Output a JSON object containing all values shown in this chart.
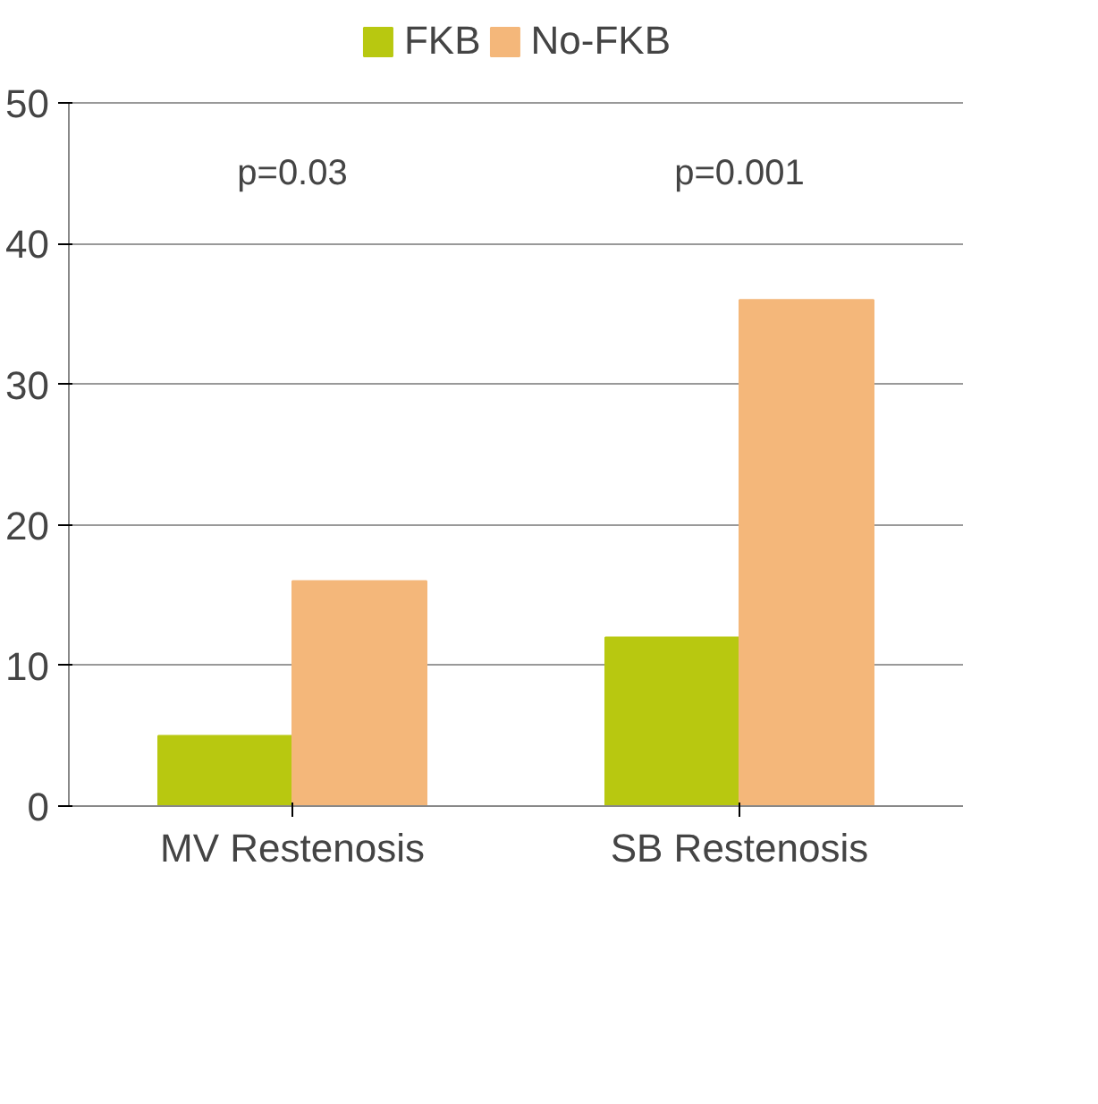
{
  "chart_data": {
    "type": "bar",
    "categories": [
      "MV Restenosis",
      "SB Restenosis"
    ],
    "series": [
      {
        "name": "FKB",
        "color": "#b8c810",
        "values": [
          5,
          12
        ]
      },
      {
        "name": "No-FKB",
        "color": "#f4b77a",
        "values": [
          16,
          36
        ]
      }
    ],
    "ylim": [
      0,
      50
    ],
    "yticks": [
      0,
      10,
      20,
      30,
      40,
      50
    ],
    "grid": "y",
    "legend": "top",
    "annotations": [
      "p=0.03",
      "p=0.001"
    ]
  }
}
